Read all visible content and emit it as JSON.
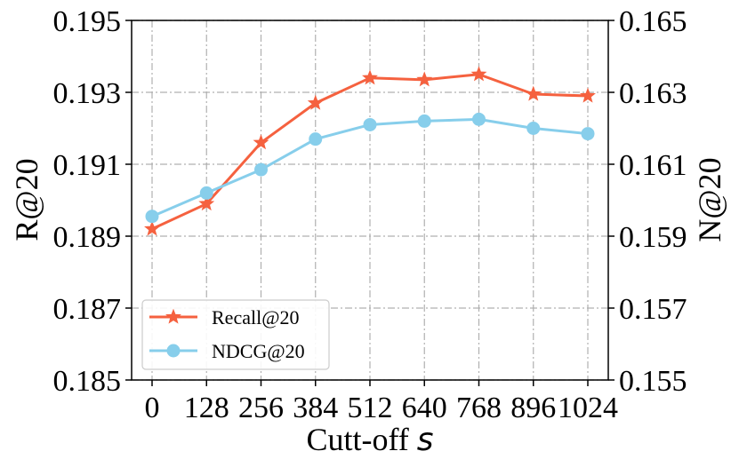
{
  "chart_data": {
    "type": "line",
    "x": [
      0,
      128,
      256,
      384,
      512,
      640,
      768,
      896,
      1024
    ],
    "categories": [
      "0",
      "128",
      "256",
      "384",
      "512",
      "640",
      "768",
      "896",
      "1024"
    ],
    "xlabel_prefix": "Cutt-off ",
    "xlabel_symbol": "s",
    "ylabel_left": "R@20",
    "ylabel_right": "N@20",
    "ylim_left": [
      0.185,
      0.195
    ],
    "ylim_right": [
      0.155,
      0.165
    ],
    "yticks_left": [
      "0.185",
      "0.187",
      "0.189",
      "0.191",
      "0.193",
      "0.195"
    ],
    "yticks_right": [
      "0.155",
      "0.157",
      "0.159",
      "0.161",
      "0.163",
      "0.165"
    ],
    "grid": true,
    "legend_position": "lower-left",
    "series": [
      {
        "name": "Recall@20",
        "axis": "left",
        "color": "#f5613f",
        "marker": "star",
        "values": [
          0.1892,
          0.1899,
          0.1916,
          0.1927,
          0.1934,
          0.19335,
          0.1935,
          0.19295,
          0.1929
        ]
      },
      {
        "name": "NDCG@20",
        "axis": "right",
        "color": "#87ceeb",
        "marker": "circle",
        "values": [
          0.15955,
          0.1602,
          0.16085,
          0.1617,
          0.1621,
          0.1622,
          0.16225,
          0.162,
          0.16185
        ]
      }
    ]
  }
}
